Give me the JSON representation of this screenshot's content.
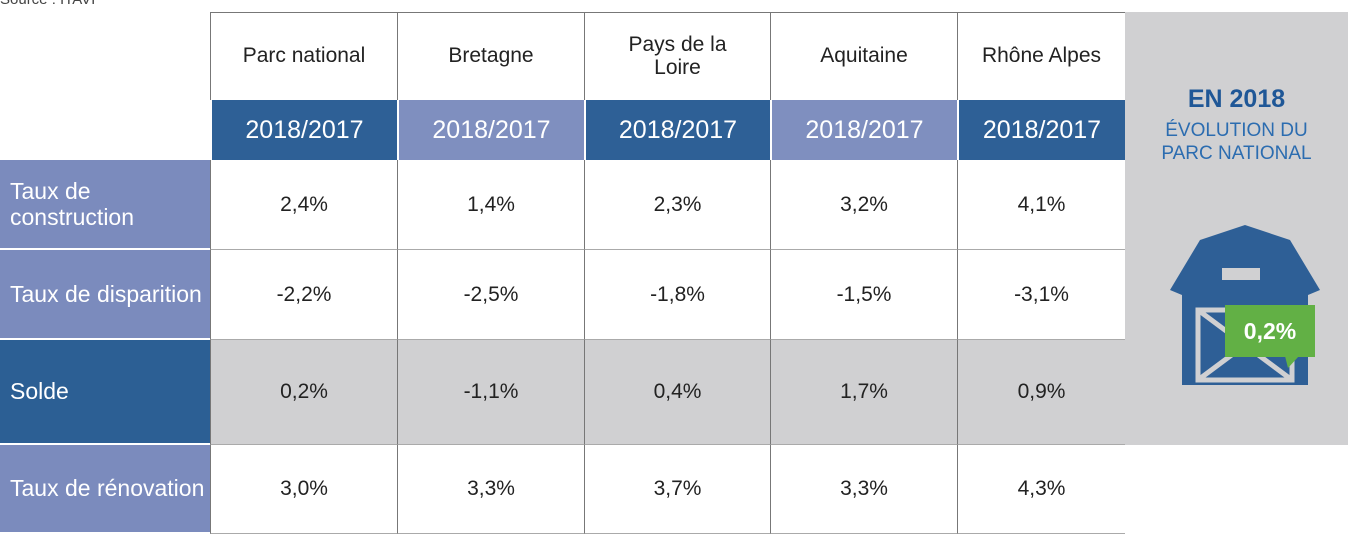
{
  "source": "Source : ITAVI",
  "table": {
    "columns": [
      "Parc national",
      "Bretagne",
      "Pays de la Loire",
      "Aquitaine",
      "Rhône Alpes"
    ],
    "subheaders": [
      "2018/2017",
      "2018/2017",
      "2018/2017",
      "2018/2017",
      "2018/2017"
    ],
    "rows": [
      {
        "label": "Taux de construction",
        "values": [
          "2,4%",
          "1,4%",
          "2,3%",
          "3,2%",
          "4,1%"
        ]
      },
      {
        "label": "Taux de disparition",
        "values": [
          "-2,2%",
          "-2,5%",
          "-1,8%",
          "-1,5%",
          "-3,1%"
        ]
      },
      {
        "label": "Solde",
        "values": [
          "0,2%",
          "-1,1%",
          "0,4%",
          "1,7%",
          "0,9%"
        ]
      },
      {
        "label": "Taux de rénovation",
        "values": [
          "3,0%",
          "3,3%",
          "3,7%",
          "3,3%",
          "4,3%"
        ]
      }
    ]
  },
  "panel": {
    "title": "EN 2018",
    "subtitle": "ÉVOLUTION DU PARC NATIONAL",
    "badge": "0,2%"
  }
}
